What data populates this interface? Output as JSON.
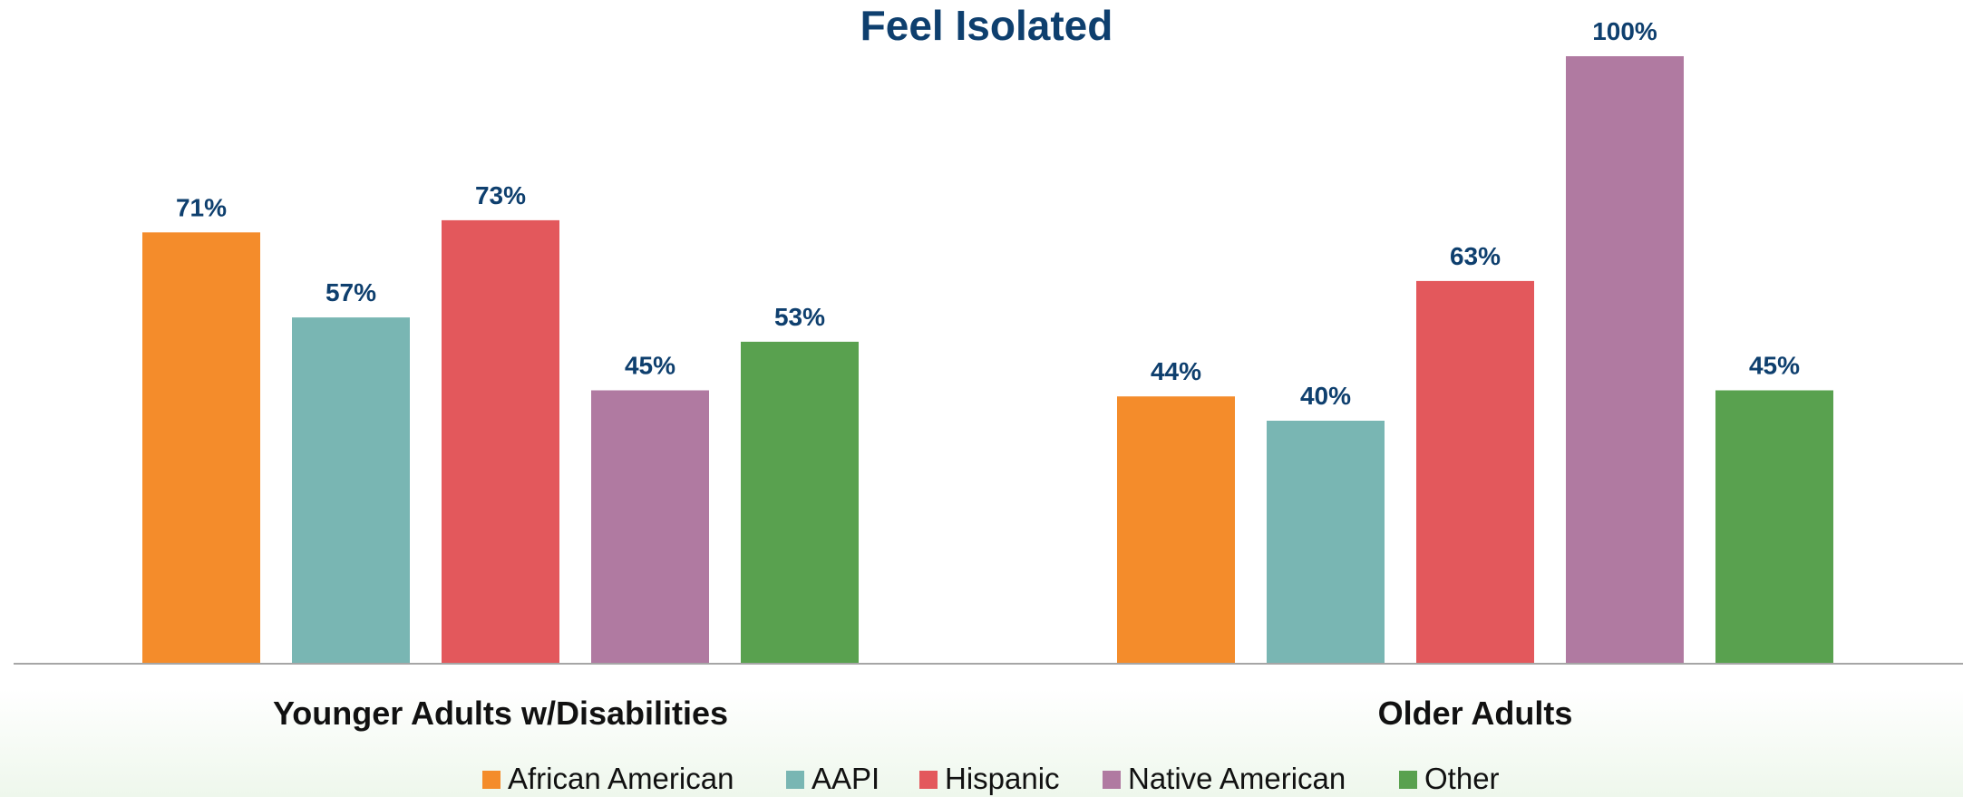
{
  "chart_data": {
    "type": "bar",
    "title": "Feel Isolated",
    "categories": [
      "Younger Adults w/Disabilities",
      "Older Adults"
    ],
    "series": [
      {
        "name": "African American",
        "values": [
          71,
          44
        ],
        "labels": [
          "71%",
          "44%"
        ]
      },
      {
        "name": "AAPI",
        "values": [
          57,
          40
        ],
        "labels": [
          "57%",
          "40%"
        ]
      },
      {
        "name": "Hispanic",
        "values": [
          73,
          63
        ],
        "labels": [
          "73%",
          "63%"
        ]
      },
      {
        "name": "Native American",
        "values": [
          45,
          100
        ],
        "labels": [
          "45%",
          "100%"
        ]
      },
      {
        "name": "Other",
        "values": [
          53,
          45
        ],
        "labels": [
          "53%",
          "45%"
        ]
      }
    ],
    "colors": [
      "#F48C2B",
      "#79B6B3",
      "#E3585C",
      "#B07AA1",
      "#59A14F"
    ],
    "ylim": [
      0,
      100
    ],
    "grid": false,
    "legend": "bottom",
    "title_color": "#0E3F6E",
    "label_color": "#0E3F6E"
  }
}
